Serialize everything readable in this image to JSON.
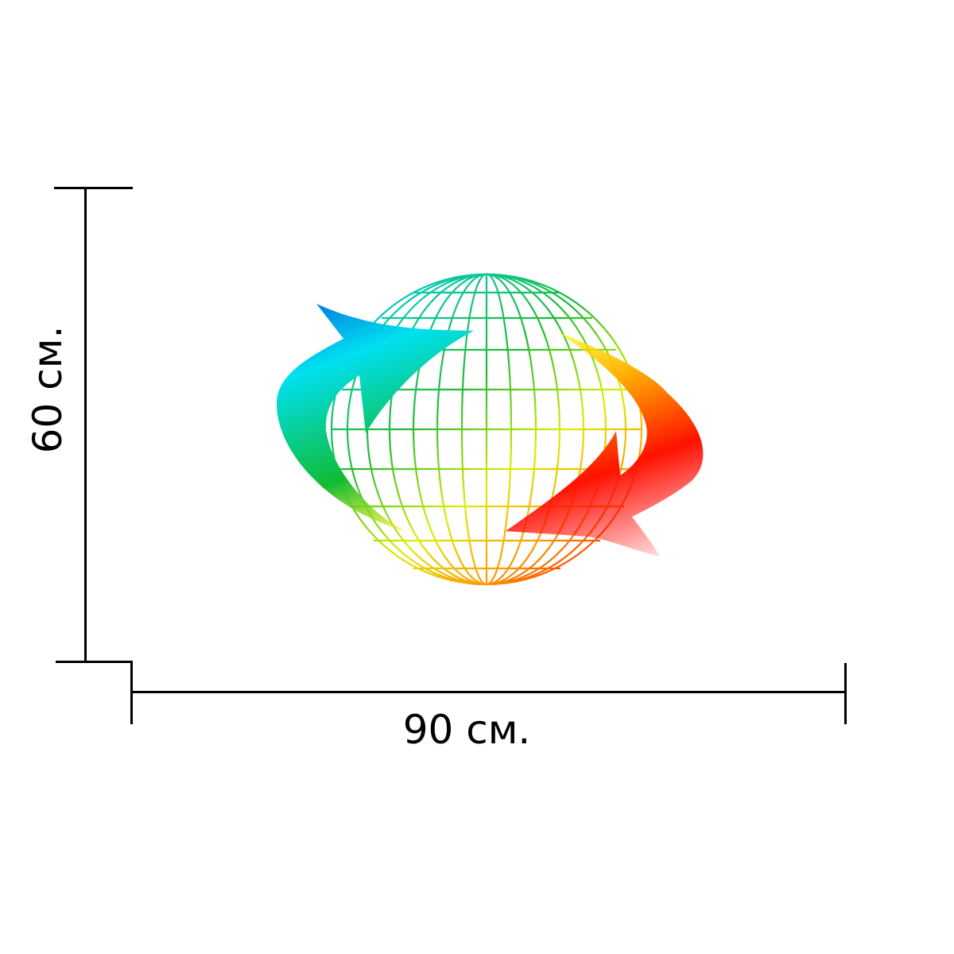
{
  "dimensions": {
    "height_label": "60 см.",
    "width_label": "90 см."
  },
  "artwork": {
    "subject": "wireframe-globe-with-two-circular-arrows",
    "gradient_colors": [
      "#0077dd",
      "#00e0ff",
      "#11bb33",
      "#ffee00",
      "#ff0000"
    ]
  }
}
